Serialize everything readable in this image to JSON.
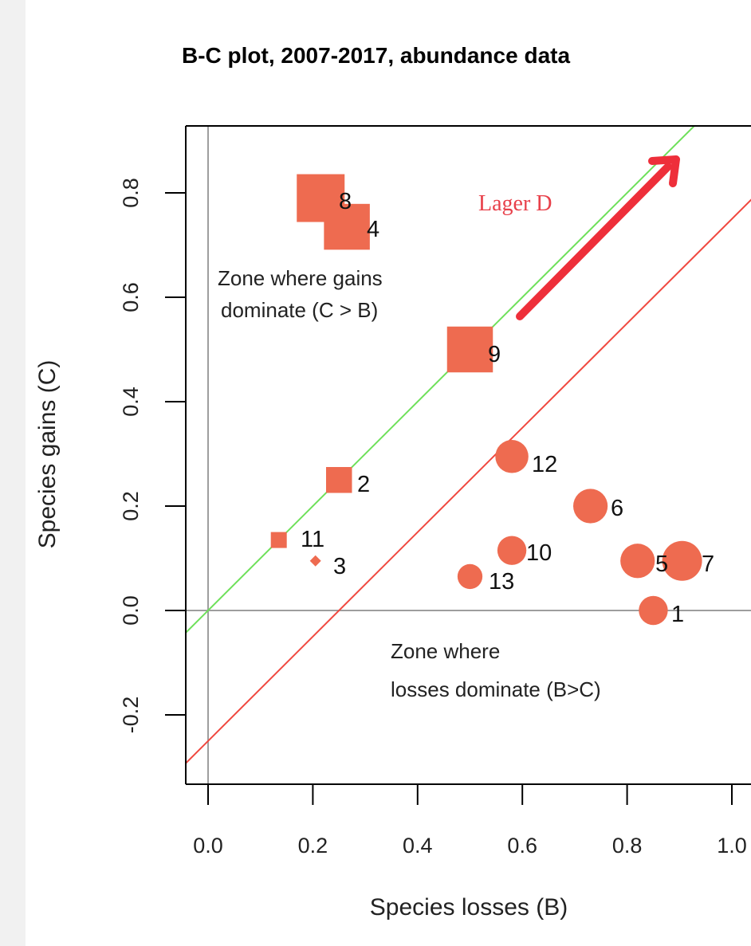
{
  "colors": {
    "marker": "#ee6b50",
    "identity_line": "#6ee05a",
    "offset_line": "#f0483f",
    "arrow": "#ee2f3a",
    "lager_text": "#e8404a",
    "zero_line": "#9e9e9e"
  },
  "chart_data": {
    "type": "scatter",
    "title": "B-C plot, 2007-2017, abundance data",
    "xlabel": "Species losses (B)",
    "ylabel": "Species gains (C)",
    "xlim": [
      -0.04,
      1.03
    ],
    "ylim": [
      -0.33,
      0.92
    ],
    "xticks": [
      0.0,
      0.2,
      0.4,
      0.6,
      0.8,
      1.0
    ],
    "xtick_labels": [
      "0.0",
      "0.2",
      "0.4",
      "0.6",
      "0.8",
      "1.0"
    ],
    "yticks": [
      -0.2,
      0.0,
      0.2,
      0.4,
      0.6,
      0.8
    ],
    "ytick_labels": [
      "-0.2",
      "0.0",
      "0.2",
      "0.4",
      "0.6",
      "0.8"
    ],
    "grid": false,
    "reference_lines": [
      {
        "slope": 1,
        "intercept": 0,
        "color": "#6ee05a"
      },
      {
        "slope": 1,
        "intercept": -0.25,
        "color": "#f0483f"
      },
      {
        "type": "horizontal",
        "value": 0,
        "color": "#9e9e9e"
      },
      {
        "type": "vertical",
        "value": 0,
        "color": "#9e9e9e"
      }
    ],
    "points": [
      {
        "label": "1",
        "x": 0.85,
        "y": 0.0,
        "shape": "circle",
        "size": 0.6
      },
      {
        "label": "2",
        "x": 0.25,
        "y": 0.25,
        "shape": "square",
        "size": 0.45
      },
      {
        "label": "3",
        "x": 0.205,
        "y": 0.095,
        "shape": "diamond",
        "size": 0.2
      },
      {
        "label": "4",
        "x": 0.265,
        "y": 0.735,
        "shape": "square",
        "size": 0.95
      },
      {
        "label": "5",
        "x": 0.82,
        "y": 0.095,
        "shape": "circle",
        "size": 0.8
      },
      {
        "label": "6",
        "x": 0.73,
        "y": 0.2,
        "shape": "circle",
        "size": 0.8
      },
      {
        "label": "7",
        "x": 0.905,
        "y": 0.095,
        "shape": "circle",
        "size": 1.0
      },
      {
        "label": "8",
        "x": 0.215,
        "y": 0.79,
        "shape": "square",
        "size": 1.0
      },
      {
        "label": "9",
        "x": 0.5,
        "y": 0.5,
        "shape": "square",
        "size": 0.95
      },
      {
        "label": "10",
        "x": 0.58,
        "y": 0.115,
        "shape": "circle",
        "size": 0.6
      },
      {
        "label": "11",
        "x": 0.135,
        "y": 0.135,
        "shape": "square",
        "size": 0.2
      },
      {
        "label": "12",
        "x": 0.58,
        "y": 0.295,
        "shape": "circle",
        "size": 0.75
      },
      {
        "label": "13",
        "x": 0.5,
        "y": 0.065,
        "shape": "circle",
        "size": 0.45
      }
    ],
    "annotations": [
      {
        "text_line1": "Zone  where  gains",
        "text_line2": "dominate (C > B)"
      },
      {
        "text_line1": "Zone where",
        "text_line2": "losses dominate (B>C)"
      },
      {
        "text": "Lager D"
      }
    ]
  }
}
